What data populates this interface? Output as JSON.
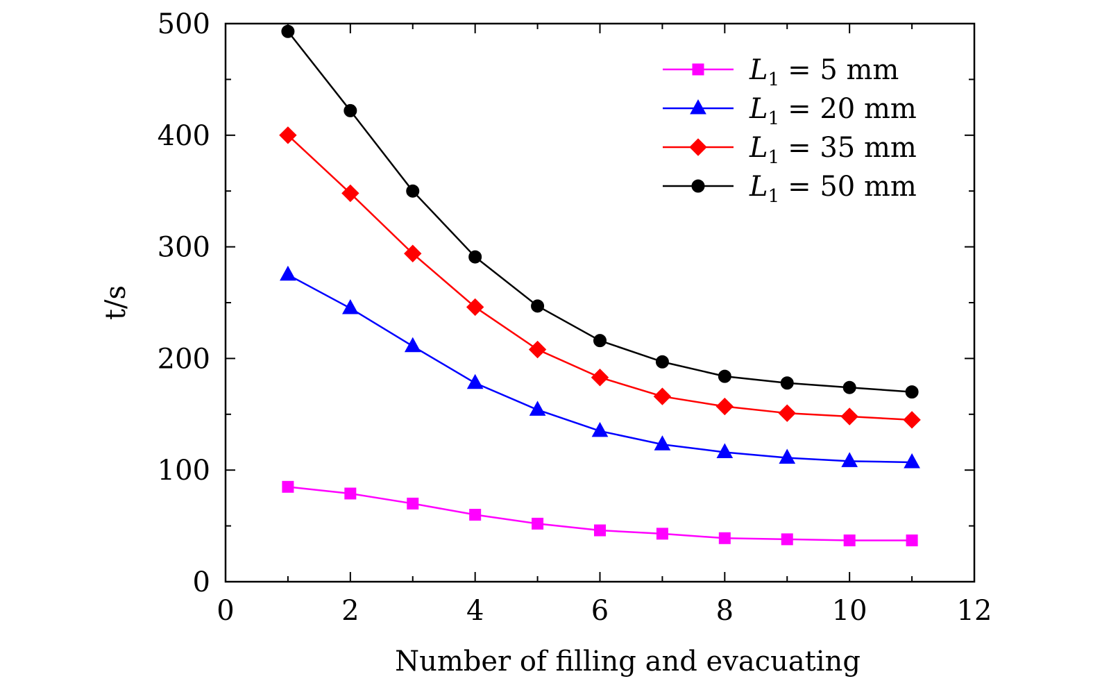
{
  "chart_data": {
    "type": "line",
    "xlabel": "Number of filling and evacuating",
    "ylabel": "t/s",
    "xlim": [
      0,
      12
    ],
    "ylim": [
      0,
      500
    ],
    "xticks": [
      0,
      2,
      4,
      6,
      8,
      10,
      12
    ],
    "yticks": [
      0,
      100,
      200,
      300,
      400,
      500
    ],
    "grid": false,
    "legend_position": "top-right",
    "x": [
      1,
      2,
      3,
      4,
      5,
      6,
      7,
      8,
      9,
      10,
      11
    ],
    "series": [
      {
        "name": "L1 = 5 mm",
        "legend_var": "L",
        "legend_sub": "1",
        "legend_rest": "= 5 mm",
        "color": "#ff00ff",
        "marker": "square",
        "values": [
          85,
          79,
          70,
          60,
          52,
          46,
          43,
          39,
          38,
          37,
          37
        ]
      },
      {
        "name": "L1 = 20 mm",
        "legend_var": "L",
        "legend_sub": "1",
        "legend_rest": "= 20 mm",
        "color": "#0000ff",
        "marker": "triangle",
        "values": [
          275,
          245,
          211,
          178,
          154,
          135,
          123,
          116,
          111,
          108,
          107
        ]
      },
      {
        "name": "L1 = 35 mm",
        "legend_var": "L",
        "legend_sub": "1",
        "legend_rest": "= 35 mm",
        "color": "#ff0000",
        "marker": "diamond",
        "values": [
          400,
          348,
          294,
          246,
          208,
          183,
          166,
          157,
          151,
          148,
          145
        ]
      },
      {
        "name": "L1 = 50 mm",
        "legend_var": "L",
        "legend_sub": "1",
        "legend_rest": "= 50 mm",
        "color": "#000000",
        "marker": "circle",
        "values": [
          493,
          422,
          350,
          291,
          247,
          216,
          197,
          184,
          178,
          174,
          170
        ]
      }
    ]
  }
}
